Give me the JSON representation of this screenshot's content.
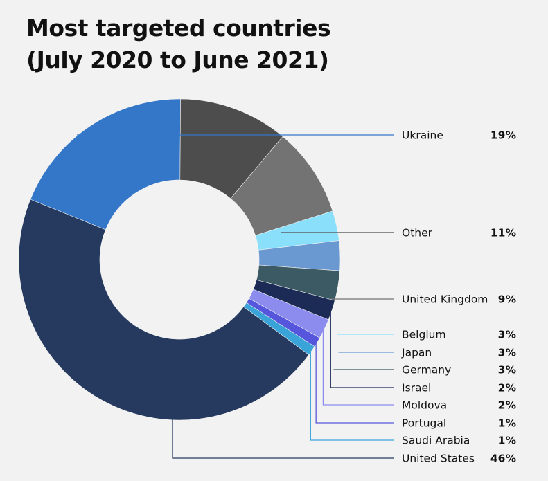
{
  "chart_data": {
    "type": "pie",
    "variant": "donut",
    "title_line1": "Most targeted countries",
    "title_line2": "(July 2020 to June 2021)",
    "slices": [
      {
        "label": "Ukraine",
        "value": 19,
        "display": "19%",
        "color": "#3477c9"
      },
      {
        "label": "Other",
        "value": 11,
        "display": "11%",
        "color": "#4d4d4d"
      },
      {
        "label": "United Kingdom",
        "value": 9,
        "display": "9%",
        "color": "#737373"
      },
      {
        "label": "Belgium",
        "value": 3,
        "display": "3%",
        "color": "#8ae0fb"
      },
      {
        "label": "Japan",
        "value": 3,
        "display": "3%",
        "color": "#6a99d2"
      },
      {
        "label": "Germany",
        "value": 3,
        "display": "3%",
        "color": "#3c5a63"
      },
      {
        "label": "Israel",
        "value": 2,
        "display": "2%",
        "color": "#1c2b55"
      },
      {
        "label": "Moldova",
        "value": 2,
        "display": "2%",
        "color": "#8c8cee"
      },
      {
        "label": "Portugal",
        "value": 1,
        "display": "1%",
        "color": "#5656dc"
      },
      {
        "label": "Saudi Arabia",
        "value": 1,
        "display": "1%",
        "color": "#3aa4d8"
      },
      {
        "label": "United States",
        "value": 46,
        "display": "46%",
        "color": "#253a5e"
      }
    ]
  }
}
